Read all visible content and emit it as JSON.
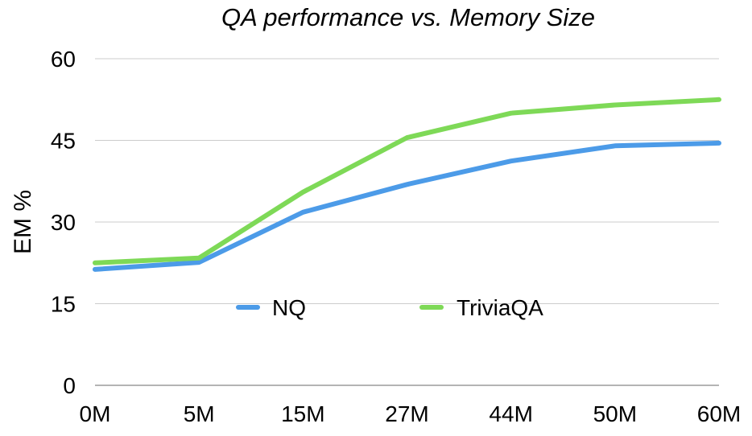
{
  "chart_data": {
    "type": "line",
    "title": "QA performance vs. Memory Size",
    "xlabel": "",
    "ylabel": "EM %",
    "categories": [
      "0M",
      "5M",
      "15M",
      "27M",
      "44M",
      "50M",
      "60M"
    ],
    "ylim": [
      0,
      60
    ],
    "yticks": [
      "0",
      "15",
      "30",
      "45",
      "60"
    ],
    "grid": true,
    "legend_position": "center",
    "series": [
      {
        "name": "NQ",
        "color": "#4c9be8",
        "values": [
          21.3,
          22.6,
          31.8,
          36.9,
          41.2,
          44.0,
          44.5
        ]
      },
      {
        "name": "TriviaQA",
        "color": "#7ed957",
        "values": [
          22.5,
          23.4,
          35.5,
          45.5,
          50.0,
          51.5,
          52.5
        ]
      }
    ]
  }
}
